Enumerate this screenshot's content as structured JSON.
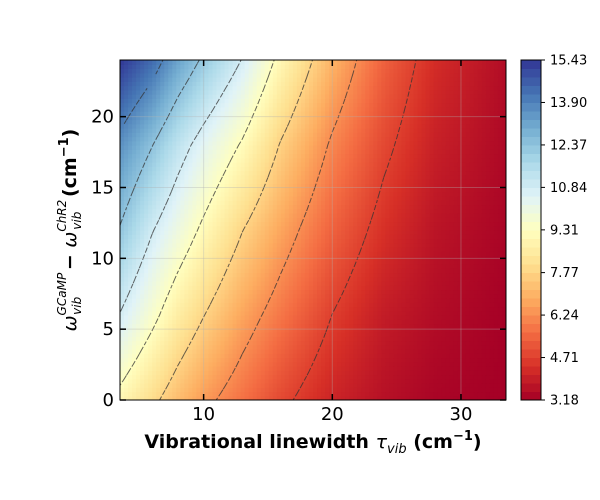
{
  "chart_data": {
    "type": "heatmap",
    "title": "",
    "xlabel": {
      "main": "Vibrational linewidth ",
      "symbol": "τ",
      "sub": "vib",
      "units_open": " (cm",
      "units_sup": "−1",
      "units_close": ")"
    },
    "ylabel": {
      "w1": "ω",
      "w1_sub": "vib",
      "w1_sup": "GCaMP",
      "minus": " − ",
      "w2": "ω",
      "w2_sub": "vib",
      "w2_sup": "ChR2",
      "units_open": " (cm",
      "units_sup": "−1",
      "units_close": ")"
    },
    "xlim": [
      3.5,
      33.5
    ],
    "ylim": [
      0,
      24
    ],
    "x_ticks": [
      10,
      20,
      30
    ],
    "x_tick_labels": [
      "10",
      "20",
      "30"
    ],
    "y_ticks": [
      0,
      5,
      10,
      15,
      20
    ],
    "y_tick_labels": [
      "0",
      "5",
      "10",
      "15",
      "20"
    ],
    "grid": true,
    "colormap": "RdYlBu",
    "color_range": [
      3.18,
      15.43
    ],
    "colorbar_ticks": [
      15.43,
      13.9,
      12.37,
      10.84,
      9.31,
      7.77,
      6.24,
      4.71,
      3.18
    ],
    "colorbar_tick_labels": [
      "15.43",
      "13.90",
      "12.37",
      "10.84",
      "9.31",
      "7.77",
      "6.24",
      "4.71",
      "3.18"
    ],
    "contour_levels": [
      4.71,
      6.24,
      7.77,
      9.31,
      10.84,
      12.37,
      13.9,
      15.43
    ],
    "grid_x": [
      3.5,
      6,
      8,
      10,
      13,
      16,
      20,
      24,
      28,
      33.5
    ],
    "grid_y": [
      0,
      6,
      12,
      18,
      24
    ],
    "values": [
      [
        9.0,
        8.0,
        7.2,
        6.5,
        5.7,
        4.9,
        4.1,
        3.6,
        3.3,
        3.18
      ],
      [
        10.8,
        9.6,
        8.6,
        7.8,
        6.7,
        5.8,
        4.7,
        3.9,
        3.5,
        3.2
      ],
      [
        12.3,
        10.9,
        10.0,
        9.1,
        7.8,
        6.7,
        5.4,
        4.4,
        3.7,
        3.3
      ],
      [
        13.6,
        12.4,
        11.3,
        10.4,
        9.2,
        7.7,
        6.1,
        4.9,
        4.0,
        3.4
      ],
      [
        15.4,
        14.4,
        13.2,
        12.2,
        10.8,
        9.0,
        7.0,
        5.4,
        4.3,
        3.5
      ]
    ],
    "colors": {
      "colorbar_stops": [
        "#a50026",
        "#d73027",
        "#f46d43",
        "#fdae61",
        "#fee090",
        "#ffffbf",
        "#e0f3f8",
        "#abd9e9",
        "#74add1",
        "#4575b4",
        "#313695"
      ],
      "contour_line": "#333333",
      "grid_line": "#b0b0b0",
      "axis": "#000000"
    }
  }
}
